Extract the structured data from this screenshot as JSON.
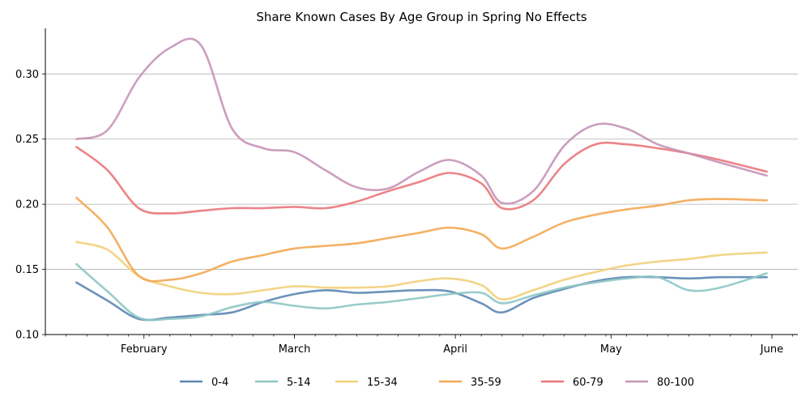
{
  "chart_data": {
    "type": "line",
    "title": "Share Known Cases By Age Group in Spring No Effects",
    "xlabel": "",
    "ylabel": "",
    "x_range": [
      "2020-01-13",
      "2020-06-06"
    ],
    "x_ticks": [
      {
        "date": "2020-02-01",
        "label": "February"
      },
      {
        "date": "2020-03-01",
        "label": "March"
      },
      {
        "date": "2020-04-01",
        "label": "April"
      },
      {
        "date": "2020-05-01",
        "label": "May"
      },
      {
        "date": "2020-06-01",
        "label": "June"
      }
    ],
    "ylim": [
      0.1,
      0.335
    ],
    "y_ticks": [
      {
        "value": 0.1,
        "label": "0.10"
      },
      {
        "value": 0.15,
        "label": "0.15"
      },
      {
        "value": 0.2,
        "label": "0.20"
      },
      {
        "value": 0.25,
        "label": "0.25"
      },
      {
        "value": 0.3,
        "label": "0.30"
      }
    ],
    "grid": "horizontal",
    "legend_position": "bottom",
    "x": [
      "2020-01-19",
      "2020-01-25",
      "2020-01-31",
      "2020-02-06",
      "2020-02-12",
      "2020-02-18",
      "2020-02-24",
      "2020-03-01",
      "2020-03-07",
      "2020-03-13",
      "2020-03-19",
      "2020-03-25",
      "2020-03-31",
      "2020-04-06",
      "2020-04-10",
      "2020-04-16",
      "2020-04-22",
      "2020-04-28",
      "2020-05-04",
      "2020-05-10",
      "2020-05-16",
      "2020-05-22",
      "2020-05-31"
    ],
    "series": [
      {
        "name": "0-4",
        "color": "#5b86b3",
        "values": [
          0.14,
          0.126,
          0.112,
          0.113,
          0.115,
          0.117,
          0.125,
          0.131,
          0.134,
          0.132,
          0.133,
          0.134,
          0.133,
          0.124,
          0.117,
          0.128,
          0.135,
          0.141,
          0.144,
          0.144,
          0.143,
          0.144,
          0.144
        ]
      },
      {
        "name": "5-14",
        "color": "#8ec6c5",
        "values": [
          0.154,
          0.133,
          0.113,
          0.112,
          0.114,
          0.121,
          0.125,
          0.122,
          0.12,
          0.123,
          0.125,
          0.128,
          0.131,
          0.132,
          0.124,
          0.13,
          0.136,
          0.14,
          0.143,
          0.144,
          0.134,
          0.136,
          0.147
        ]
      },
      {
        "name": "15-34",
        "color": "#f1d07a",
        "values": [
          0.171,
          0.165,
          0.145,
          0.137,
          0.132,
          0.131,
          0.134,
          0.137,
          0.136,
          0.136,
          0.137,
          0.141,
          0.143,
          0.138,
          0.127,
          0.134,
          0.142,
          0.148,
          0.153,
          0.156,
          0.158,
          0.161,
          0.163
        ]
      },
      {
        "name": "35-59",
        "color": "#f3a953",
        "values": [
          0.205,
          0.182,
          0.145,
          0.142,
          0.147,
          0.156,
          0.161,
          0.166,
          0.168,
          0.17,
          0.174,
          0.178,
          0.182,
          0.177,
          0.166,
          0.175,
          0.186,
          0.192,
          0.196,
          0.199,
          0.203,
          0.204,
          0.203
        ]
      },
      {
        "name": "60-79",
        "color": "#e9777b",
        "values": [
          0.244,
          0.226,
          0.197,
          0.193,
          0.195,
          0.197,
          0.197,
          0.198,
          0.197,
          0.202,
          0.21,
          0.217,
          0.224,
          0.216,
          0.197,
          0.203,
          0.231,
          0.246,
          0.246,
          0.243,
          0.239,
          0.234,
          0.225
        ]
      },
      {
        "name": "80-100",
        "color": "#c694b7",
        "values": [
          0.25,
          0.257,
          0.297,
          0.32,
          0.322,
          0.258,
          0.243,
          0.24,
          0.226,
          0.213,
          0.212,
          0.225,
          0.234,
          0.222,
          0.201,
          0.21,
          0.245,
          0.261,
          0.258,
          0.246,
          0.239,
          0.232,
          0.222
        ]
      }
    ]
  }
}
